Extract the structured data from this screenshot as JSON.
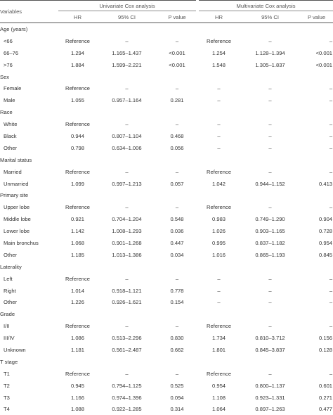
{
  "header": {
    "variables": "Variables",
    "univariate": "Univariate Cox analysis",
    "multivariate": "Multivariate Cox analysis",
    "hr": "HR",
    "ci": "95% CI",
    "p": "P value"
  },
  "sections": [
    {
      "title": "Age (years)",
      "rows": [
        {
          "label": "<66",
          "hr1": "Reference",
          "ci1": "–",
          "p1": "–",
          "hr2": "Reference",
          "ci2": "–",
          "p2": "–"
        },
        {
          "label": "66–76",
          "hr1": "1.294",
          "ci1": "1.165–1.437",
          "p1": "<0.001",
          "hr2": "1.254",
          "ci2": "1.128–1.394",
          "p2": "<0.001"
        },
        {
          "label": ">76",
          "hr1": "1.884",
          "ci1": "1.599–2.221",
          "p1": "<0.001",
          "hr2": "1.548",
          "ci2": "1.305–1.837",
          "p2": "<0.001"
        }
      ]
    },
    {
      "title": "Sex",
      "rows": [
        {
          "label": "Female",
          "hr1": "Reference",
          "ci1": "–",
          "p1": "–",
          "hr2": "–",
          "ci2": "–",
          "p2": "–"
        },
        {
          "label": "Male",
          "hr1": "1.055",
          "ci1": "0.957–1.164",
          "p1": "0.281",
          "hr2": "–",
          "ci2": "–",
          "p2": "–"
        }
      ]
    },
    {
      "title": "Race",
      "rows": [
        {
          "label": "White",
          "hr1": "Reference",
          "ci1": "–",
          "p1": "–",
          "hr2": "–",
          "ci2": "–",
          "p2": "–"
        },
        {
          "label": "Black",
          "hr1": "0.944",
          "ci1": "0.807–1.104",
          "p1": "0.468",
          "hr2": "–",
          "ci2": "–",
          "p2": "–"
        },
        {
          "label": "Other",
          "hr1": "0.798",
          "ci1": "0.634–1.006",
          "p1": "0.056",
          "hr2": "–",
          "ci2": "–",
          "p2": "–"
        }
      ]
    },
    {
      "title": "Marital status",
      "rows": [
        {
          "label": "Married",
          "hr1": "Reference",
          "ci1": "–",
          "p1": "–",
          "hr2": "Reference",
          "ci2": "–",
          "p2": "–"
        },
        {
          "label": "Unmarried",
          "hr1": "1.099",
          "ci1": "0.997–1.213",
          "p1": "0.057",
          "hr2": "1.042",
          "ci2": "0.944–1.152",
          "p2": "0.413"
        }
      ]
    },
    {
      "title": "Primary site",
      "rows": [
        {
          "label": "Upper lobe",
          "hr1": "Reference",
          "ci1": "–",
          "p1": "–",
          "hr2": "Reference",
          "ci2": "–",
          "p2": "–"
        },
        {
          "label": "Middle lobe",
          "hr1": "0.921",
          "ci1": "0.704–1.204",
          "p1": "0.548",
          "hr2": "0.983",
          "ci2": "0.749–1.290",
          "p2": "0.904"
        },
        {
          "label": "Lower lobe",
          "hr1": "1.142",
          "ci1": "1.008–1.293",
          "p1": "0.036",
          "hr2": "1.026",
          "ci2": "0.903–1.165",
          "p2": "0.728"
        },
        {
          "label": "Main bronchus",
          "hr1": "1.068",
          "ci1": "0.901–1.268",
          "p1": "0.447",
          "hr2": "0.995",
          "ci2": "0.837–1.182",
          "p2": "0.954"
        },
        {
          "label": "Other",
          "hr1": "1.185",
          "ci1": "1.013–1.386",
          "p1": "0.034",
          "hr2": "1.016",
          "ci2": "0.865–1.193",
          "p2": "0.845"
        }
      ]
    },
    {
      "title": "Laterality",
      "rows": [
        {
          "label": "Left",
          "hr1": "Reference",
          "ci1": "–",
          "p1": "–",
          "hr2": "–",
          "ci2": "–",
          "p2": "–"
        },
        {
          "label": "Right",
          "hr1": "1.014",
          "ci1": "0.918–1.121",
          "p1": "0.778",
          "hr2": "–",
          "ci2": "–",
          "p2": "–"
        },
        {
          "label": "Other",
          "hr1": "1.226",
          "ci1": "0.926–1.621",
          "p1": "0.154",
          "hr2": "–",
          "ci2": "–",
          "p2": "–"
        }
      ]
    },
    {
      "title": "Grade",
      "rows": [
        {
          "label": "I/II",
          "hr1": "Reference",
          "ci1": "–",
          "p1": "–",
          "hr2": "Reference",
          "ci2": "–",
          "p2": "–"
        },
        {
          "label": "III/IV",
          "hr1": "1.086",
          "ci1": "0.513–2.296",
          "p1": "0.830",
          "hr2": "1.734",
          "ci2": "0.810–3.712",
          "p2": "0.156"
        },
        {
          "label": "Unknown",
          "hr1": "1.181",
          "ci1": "0.561–2.487",
          "p1": "0.662",
          "hr2": "1.801",
          "ci2": "0.845–3.837",
          "p2": "0.128"
        }
      ]
    },
    {
      "title": "T stage",
      "rows": [
        {
          "label": "T1",
          "hr1": "Reference",
          "ci1": "–",
          "p1": "–",
          "hr2": "Reference",
          "ci2": "–",
          "p2": "–"
        },
        {
          "label": "T2",
          "hr1": "0.945",
          "ci1": "0.794–1.125",
          "p1": "0.525",
          "hr2": "0.954",
          "ci2": "0.800–1.137",
          "p2": "0.601"
        },
        {
          "label": "T3",
          "hr1": "1.166",
          "ci1": "0.974–1.396",
          "p1": "0.094",
          "hr2": "1.108",
          "ci2": "0.923–1.331",
          "p2": "0.271"
        },
        {
          "label": "T4",
          "hr1": "1.088",
          "ci1": "0.922–1.285",
          "p1": "0.314",
          "hr2": "1.064",
          "ci2": "0.897–1.263",
          "p2": "0.477"
        }
      ]
    }
  ]
}
